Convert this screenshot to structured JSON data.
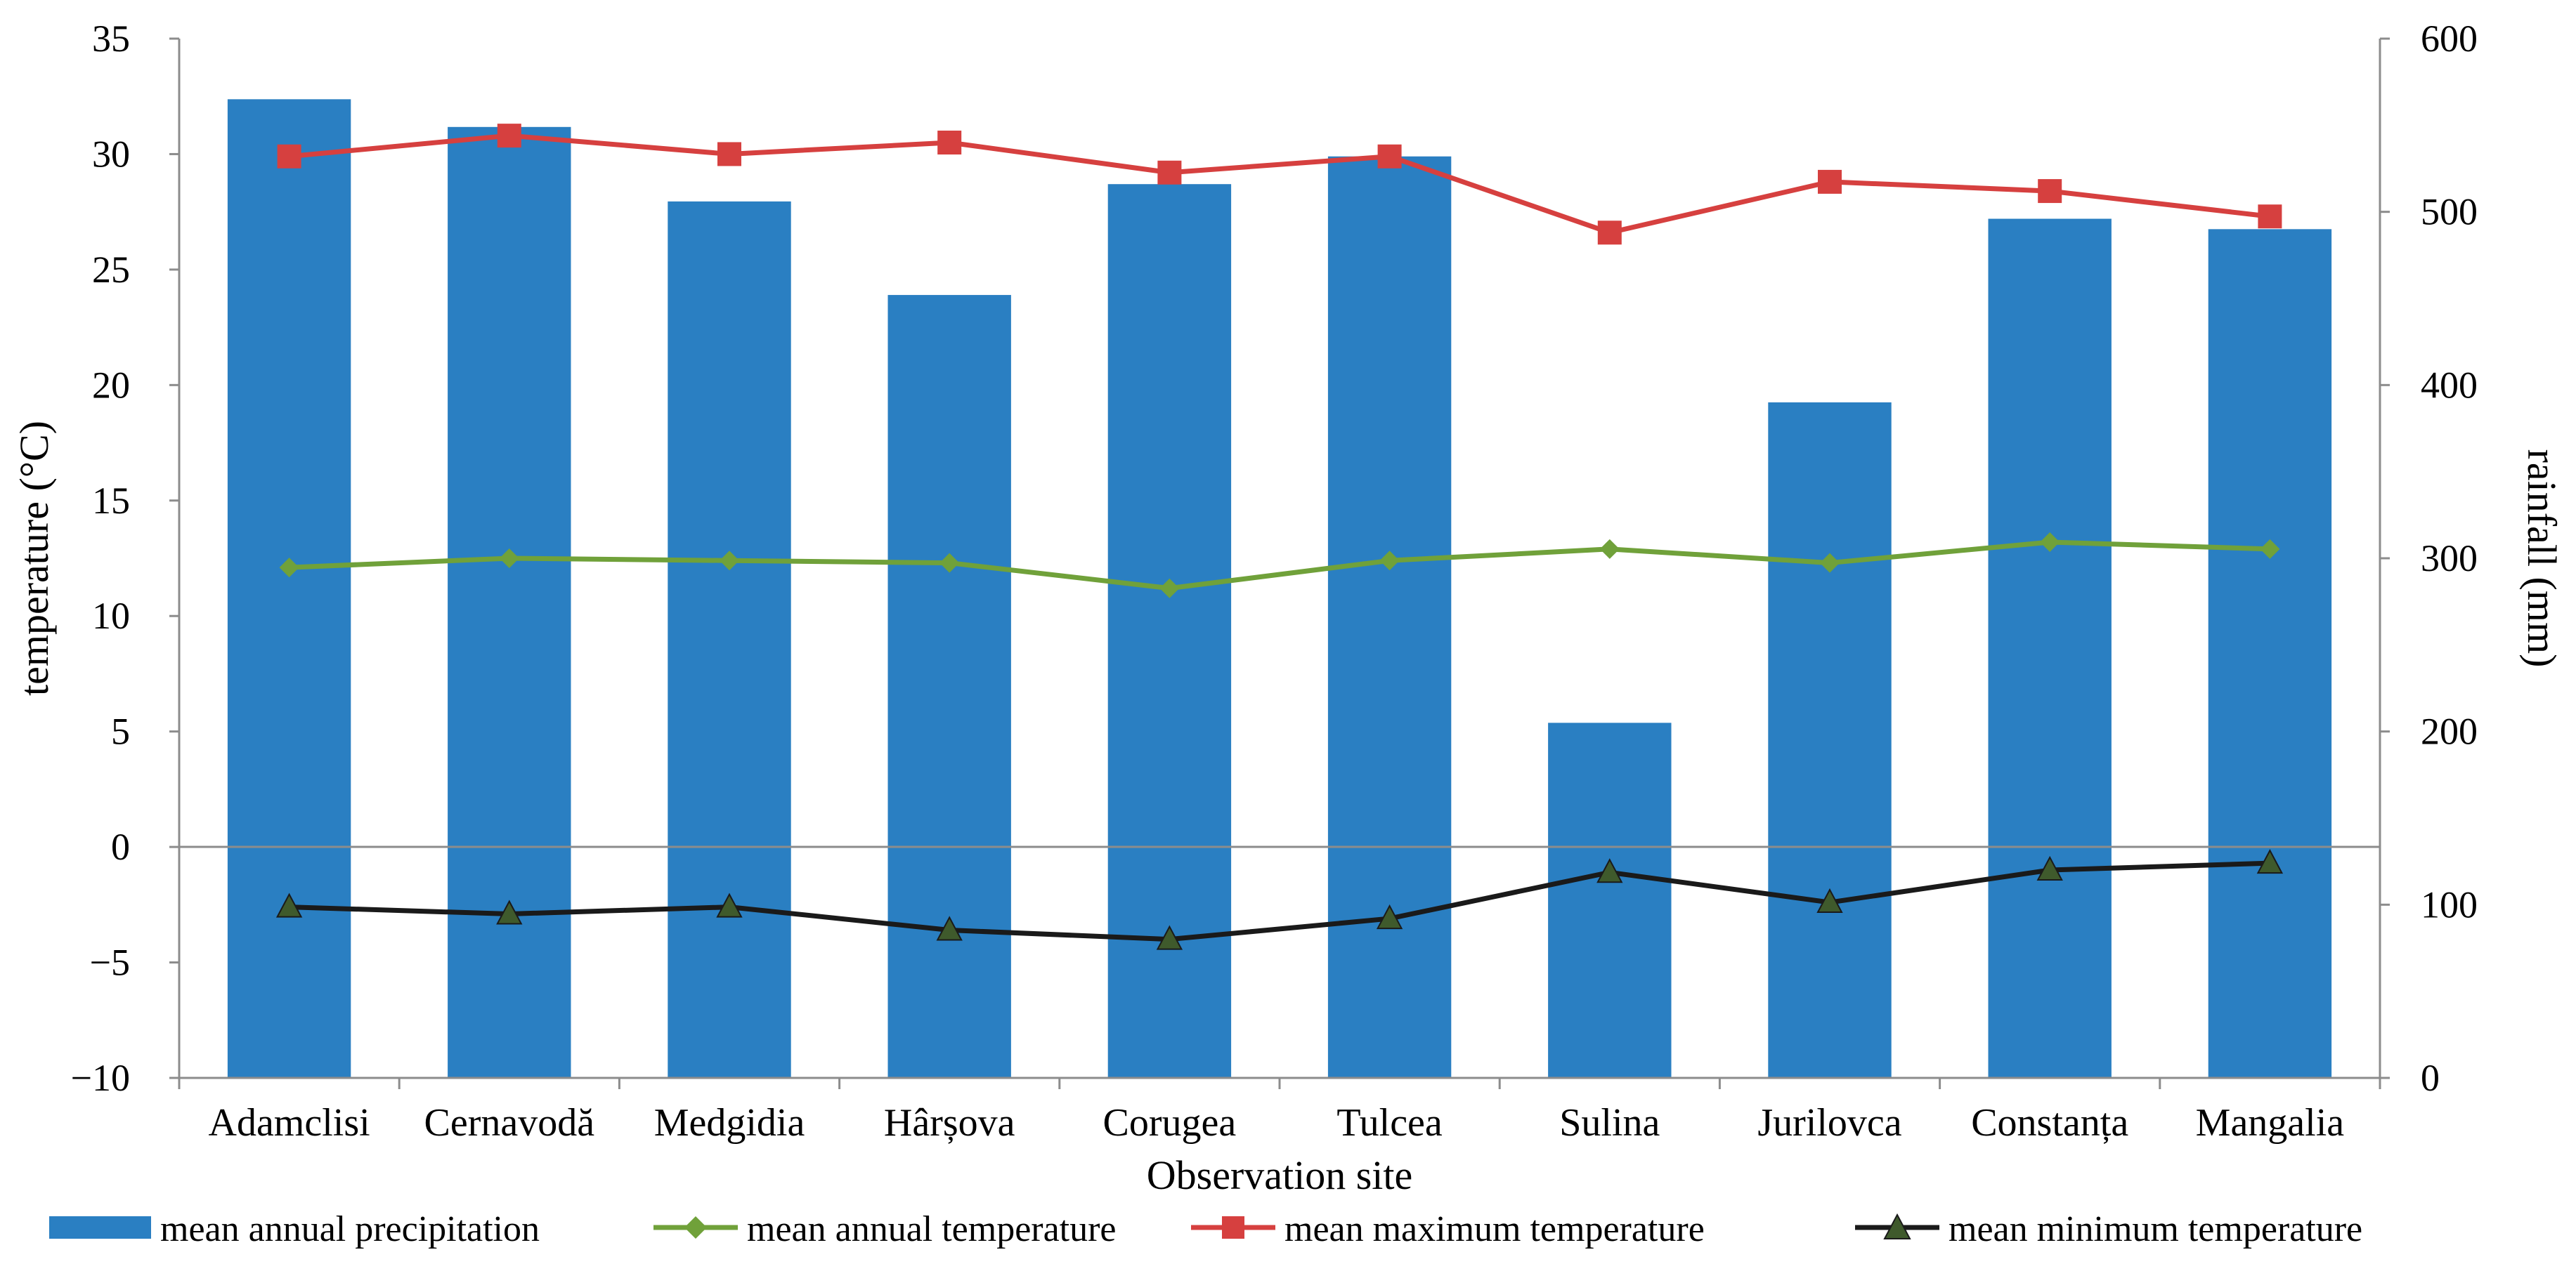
{
  "chart_data": {
    "type": "bar",
    "xlabel": "Observation site",
    "ylabel_left": "temperature (°C)",
    "ylabel_right": "rainfall (mm)",
    "ylim_left": [
      -10,
      35
    ],
    "ylim_right": [
      0,
      600
    ],
    "yticks_left": [
      "−10",
      "−5",
      "0",
      "5",
      "10",
      "15",
      "20",
      "25",
      "30",
      "35"
    ],
    "yticks_right": [
      "0",
      "100",
      "200",
      "300",
      "400",
      "500",
      "600"
    ],
    "categories": [
      "Adamclisi",
      "Cernavodă",
      "Medgidia",
      "Hârșova",
      "Corugea",
      "Tulcea",
      "Sulina",
      "Jurilovca",
      "Constanța",
      "Mangalia"
    ],
    "grid": false,
    "legend_position": "bottom",
    "series": [
      {
        "name": "mean annual precipitation",
        "kind": "bar",
        "axis": "right",
        "color": "#2a7fc2",
        "values": [
          565,
          549,
          506,
          452,
          516,
          532,
          205,
          390,
          496,
          490
        ]
      },
      {
        "name": "mean annual temperature",
        "kind": "line",
        "axis": "left",
        "marker": "diamond",
        "color": "#70a13a",
        "values": [
          12.1,
          12.5,
          12.4,
          12.3,
          11.2,
          12.4,
          12.9,
          12.3,
          13.2,
          12.9
        ]
      },
      {
        "name": "mean maximum temperature",
        "kind": "line",
        "axis": "left",
        "marker": "square",
        "color": "#d6403f",
        "values": [
          29.9,
          30.8,
          30.0,
          30.5,
          29.2,
          29.9,
          26.6,
          28.8,
          28.4,
          27.3
        ]
      },
      {
        "name": "mean minimum temperature",
        "kind": "line",
        "axis": "left",
        "marker": "triangle",
        "color": "#1a1a1a",
        "marker_fill": "#3f5a2c",
        "values": [
          -2.6,
          -2.9,
          -2.6,
          -3.6,
          -4.0,
          -3.1,
          -1.1,
          -2.4,
          -1.0,
          -0.7
        ]
      }
    ]
  }
}
